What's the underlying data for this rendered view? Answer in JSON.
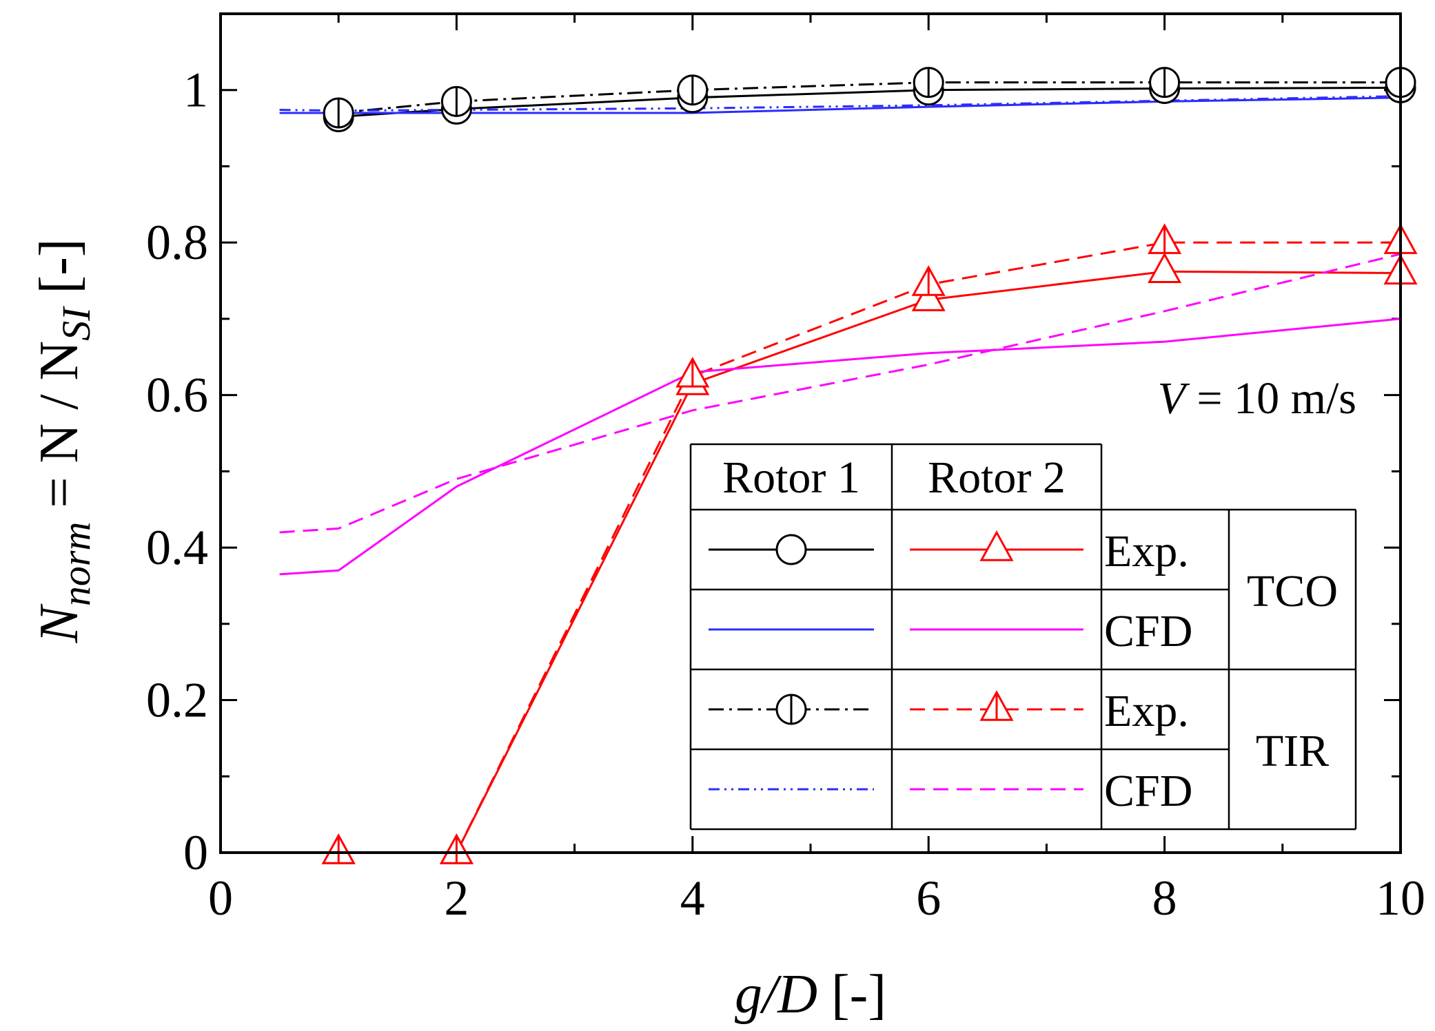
{
  "chart_data": {
    "type": "line",
    "xlabel": {
      "italic": "g/D",
      "plain": " [-]"
    },
    "ylabel": {
      "main": "N",
      "sub": "norm",
      "mid": " = N / N",
      "sub2": "SI",
      "end": "  [-]"
    },
    "xlim": [
      0,
      10
    ],
    "ylim": [
      0,
      1.1
    ],
    "xticks": [
      0,
      2,
      4,
      6,
      8,
      10
    ],
    "xtick_labels": [
      "0",
      "2",
      "4",
      "6",
      "8",
      "10"
    ],
    "yticks": [
      0,
      0.2,
      0.4,
      0.6,
      0.8,
      1
    ],
    "ytick_labels": [
      "0",
      "0.2",
      "0.4",
      "0.6",
      "0.8",
      "1"
    ],
    "annotation": {
      "italic": "V",
      "plain": " = 10 m/s"
    },
    "series": [
      {
        "name": "Rotor 1 Exp. TCO",
        "color": "#000000",
        "dash": "solid",
        "marker": "circle",
        "x": [
          1,
          2,
          4,
          6,
          8,
          10
        ],
        "y": [
          0.965,
          0.975,
          0.99,
          1.0,
          1.002,
          1.003
        ]
      },
      {
        "name": "Rotor 1 Exp. TIR",
        "color": "#000000",
        "dash": "dashdot",
        "marker": "circle-bar",
        "x": [
          1,
          2,
          4,
          6,
          8,
          10
        ],
        "y": [
          0.97,
          0.985,
          1.0,
          1.01,
          1.01,
          1.01
        ]
      },
      {
        "name": "Rotor 1 CFD TCO",
        "color": "#2b2bff",
        "dash": "solid",
        "marker": "none",
        "x": [
          0.5,
          1,
          2,
          4,
          6,
          8,
          10
        ],
        "y": [
          0.97,
          0.97,
          0.97,
          0.97,
          0.978,
          0.985,
          0.99
        ]
      },
      {
        "name": "Rotor 1 CFD TIR",
        "color": "#2b2bff",
        "dash": "dashdotdot",
        "marker": "none",
        "x": [
          0.5,
          1,
          2,
          4,
          6,
          8,
          10
        ],
        "y": [
          0.974,
          0.973,
          0.974,
          0.976,
          0.98,
          0.986,
          0.992
        ]
      },
      {
        "name": "Rotor 2 Exp. TCO",
        "color": "#ff0000",
        "dash": "solid",
        "marker": "triangle",
        "x": [
          1,
          2,
          4,
          6,
          8,
          10
        ],
        "y": [
          0.0,
          0.0,
          0.615,
          0.725,
          0.762,
          0.76
        ]
      },
      {
        "name": "Rotor 2 Exp. TIR",
        "color": "#ff0000",
        "dash": "dashed",
        "marker": "triangle-bar",
        "x": [
          1,
          2,
          4,
          6,
          8,
          10
        ],
        "y": [
          0.0,
          0.0,
          0.625,
          0.745,
          0.8,
          0.8
        ]
      },
      {
        "name": "Rotor 2 CFD TCO",
        "color": "#ff00ff",
        "dash": "solid",
        "marker": "none",
        "x": [
          0.5,
          1,
          2,
          4,
          6,
          8,
          10
        ],
        "y": [
          0.365,
          0.37,
          0.48,
          0.63,
          0.655,
          0.67,
          0.7
        ]
      },
      {
        "name": "Rotor 2 CFD TIR",
        "color": "#ff00ff",
        "dash": "dashed",
        "marker": "none",
        "x": [
          0.5,
          1,
          2,
          4,
          6,
          8,
          10
        ],
        "y": [
          0.42,
          0.425,
          0.49,
          0.58,
          0.64,
          0.71,
          0.785
        ]
      }
    ],
    "legend": {
      "position": "lower-right",
      "headers": [
        "Rotor 1",
        "Rotor 2"
      ],
      "rows": [
        {
          "rotor1": "Rotor 1 Exp. TCO",
          "rotor2": "Rotor 2 Exp. TCO",
          "label": "Exp."
        },
        {
          "rotor1": "Rotor 1 CFD TCO",
          "rotor2": "Rotor 2 CFD TCO",
          "label": "CFD"
        },
        {
          "rotor1": "Rotor 1 Exp. TIR",
          "rotor2": "Rotor 2 Exp. TIR",
          "label": "Exp."
        },
        {
          "rotor1": "Rotor 1 CFD TIR",
          "rotor2": "Rotor 2 CFD TIR",
          "label": "CFD"
        }
      ],
      "groups": [
        "TCO",
        "TIR"
      ]
    }
  }
}
